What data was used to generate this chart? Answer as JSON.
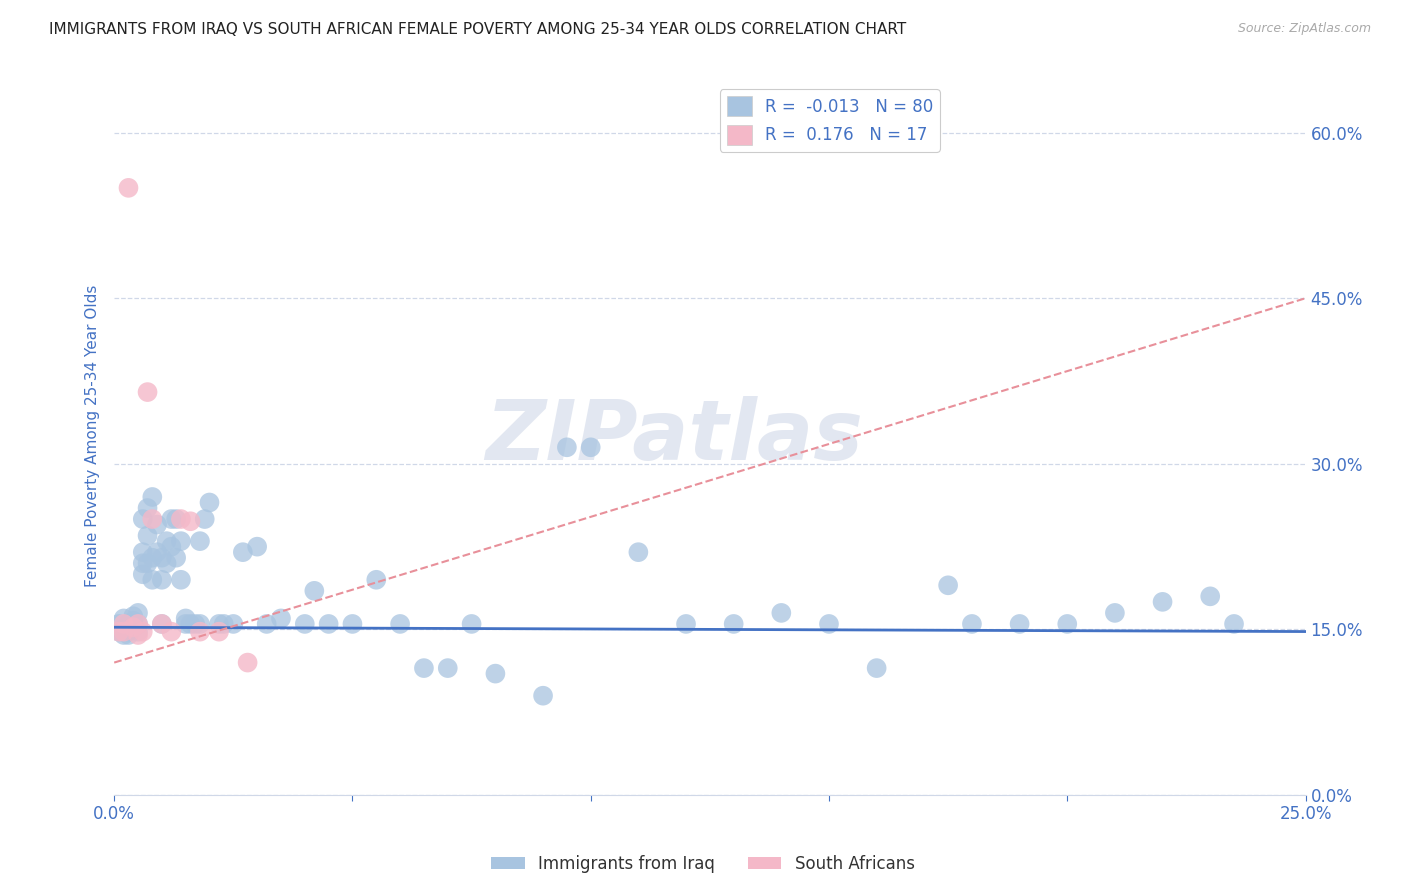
{
  "title": "IMMIGRANTS FROM IRAQ VS SOUTH AFRICAN FEMALE POVERTY AMONG 25-34 YEAR OLDS CORRELATION CHART",
  "source": "Source: ZipAtlas.com",
  "ylabel": "Female Poverty Among 25-34 Year Olds",
  "xlim": [
    0.0,
    0.25
  ],
  "ylim": [
    0.0,
    0.65
  ],
  "r_iraq": -0.013,
  "n_iraq": 80,
  "r_sa": 0.176,
  "n_sa": 17,
  "legend_label_iraq": "Immigrants from Iraq",
  "legend_label_sa": "South Africans",
  "color_iraq": "#a8c4e0",
  "color_sa": "#f4b8c8",
  "trendline_iraq_color": "#4472c4",
  "trendline_sa_color": "#e8909a",
  "background_color": "#ffffff",
  "grid_color": "#d0d8e8",
  "title_color": "#222222",
  "axis_color": "#4472c4",
  "watermark_text": "ZIPatlas",
  "iraq_trendline": [
    0.152,
    0.1481
  ],
  "sa_trendline": [
    0.12,
    0.45
  ],
  "iraq_x": [
    0.001,
    0.001,
    0.002,
    0.002,
    0.002,
    0.003,
    0.003,
    0.003,
    0.003,
    0.004,
    0.004,
    0.004,
    0.005,
    0.005,
    0.005,
    0.006,
    0.006,
    0.006,
    0.006,
    0.007,
    0.007,
    0.007,
    0.008,
    0.008,
    0.008,
    0.009,
    0.009,
    0.01,
    0.01,
    0.01,
    0.011,
    0.011,
    0.012,
    0.012,
    0.013,
    0.013,
    0.014,
    0.014,
    0.015,
    0.015,
    0.016,
    0.017,
    0.018,
    0.018,
    0.019,
    0.02,
    0.022,
    0.023,
    0.025,
    0.027,
    0.03,
    0.032,
    0.035,
    0.04,
    0.042,
    0.045,
    0.05,
    0.055,
    0.06,
    0.065,
    0.07,
    0.075,
    0.08,
    0.09,
    0.095,
    0.1,
    0.11,
    0.12,
    0.13,
    0.14,
    0.15,
    0.16,
    0.175,
    0.18,
    0.19,
    0.2,
    0.21,
    0.22,
    0.23,
    0.235
  ],
  "iraq_y": [
    0.155,
    0.148,
    0.16,
    0.145,
    0.15,
    0.155,
    0.148,
    0.152,
    0.145,
    0.158,
    0.152,
    0.162,
    0.155,
    0.148,
    0.165,
    0.2,
    0.21,
    0.22,
    0.25,
    0.21,
    0.235,
    0.26,
    0.215,
    0.27,
    0.195,
    0.245,
    0.22,
    0.215,
    0.155,
    0.195,
    0.21,
    0.23,
    0.225,
    0.25,
    0.215,
    0.25,
    0.195,
    0.23,
    0.16,
    0.155,
    0.155,
    0.155,
    0.23,
    0.155,
    0.25,
    0.265,
    0.155,
    0.155,
    0.155,
    0.22,
    0.225,
    0.155,
    0.16,
    0.155,
    0.185,
    0.155,
    0.155,
    0.195,
    0.155,
    0.115,
    0.115,
    0.155,
    0.11,
    0.09,
    0.315,
    0.315,
    0.22,
    0.155,
    0.155,
    0.165,
    0.155,
    0.115,
    0.19,
    0.155,
    0.155,
    0.155,
    0.165,
    0.175,
    0.18,
    0.155
  ],
  "sa_x": [
    0.001,
    0.002,
    0.002,
    0.003,
    0.004,
    0.005,
    0.005,
    0.006,
    0.007,
    0.008,
    0.01,
    0.012,
    0.014,
    0.016,
    0.018,
    0.022,
    0.028
  ],
  "sa_y": [
    0.148,
    0.148,
    0.155,
    0.55,
    0.152,
    0.145,
    0.155,
    0.148,
    0.365,
    0.25,
    0.155,
    0.148,
    0.25,
    0.248,
    0.148,
    0.148,
    0.12
  ]
}
